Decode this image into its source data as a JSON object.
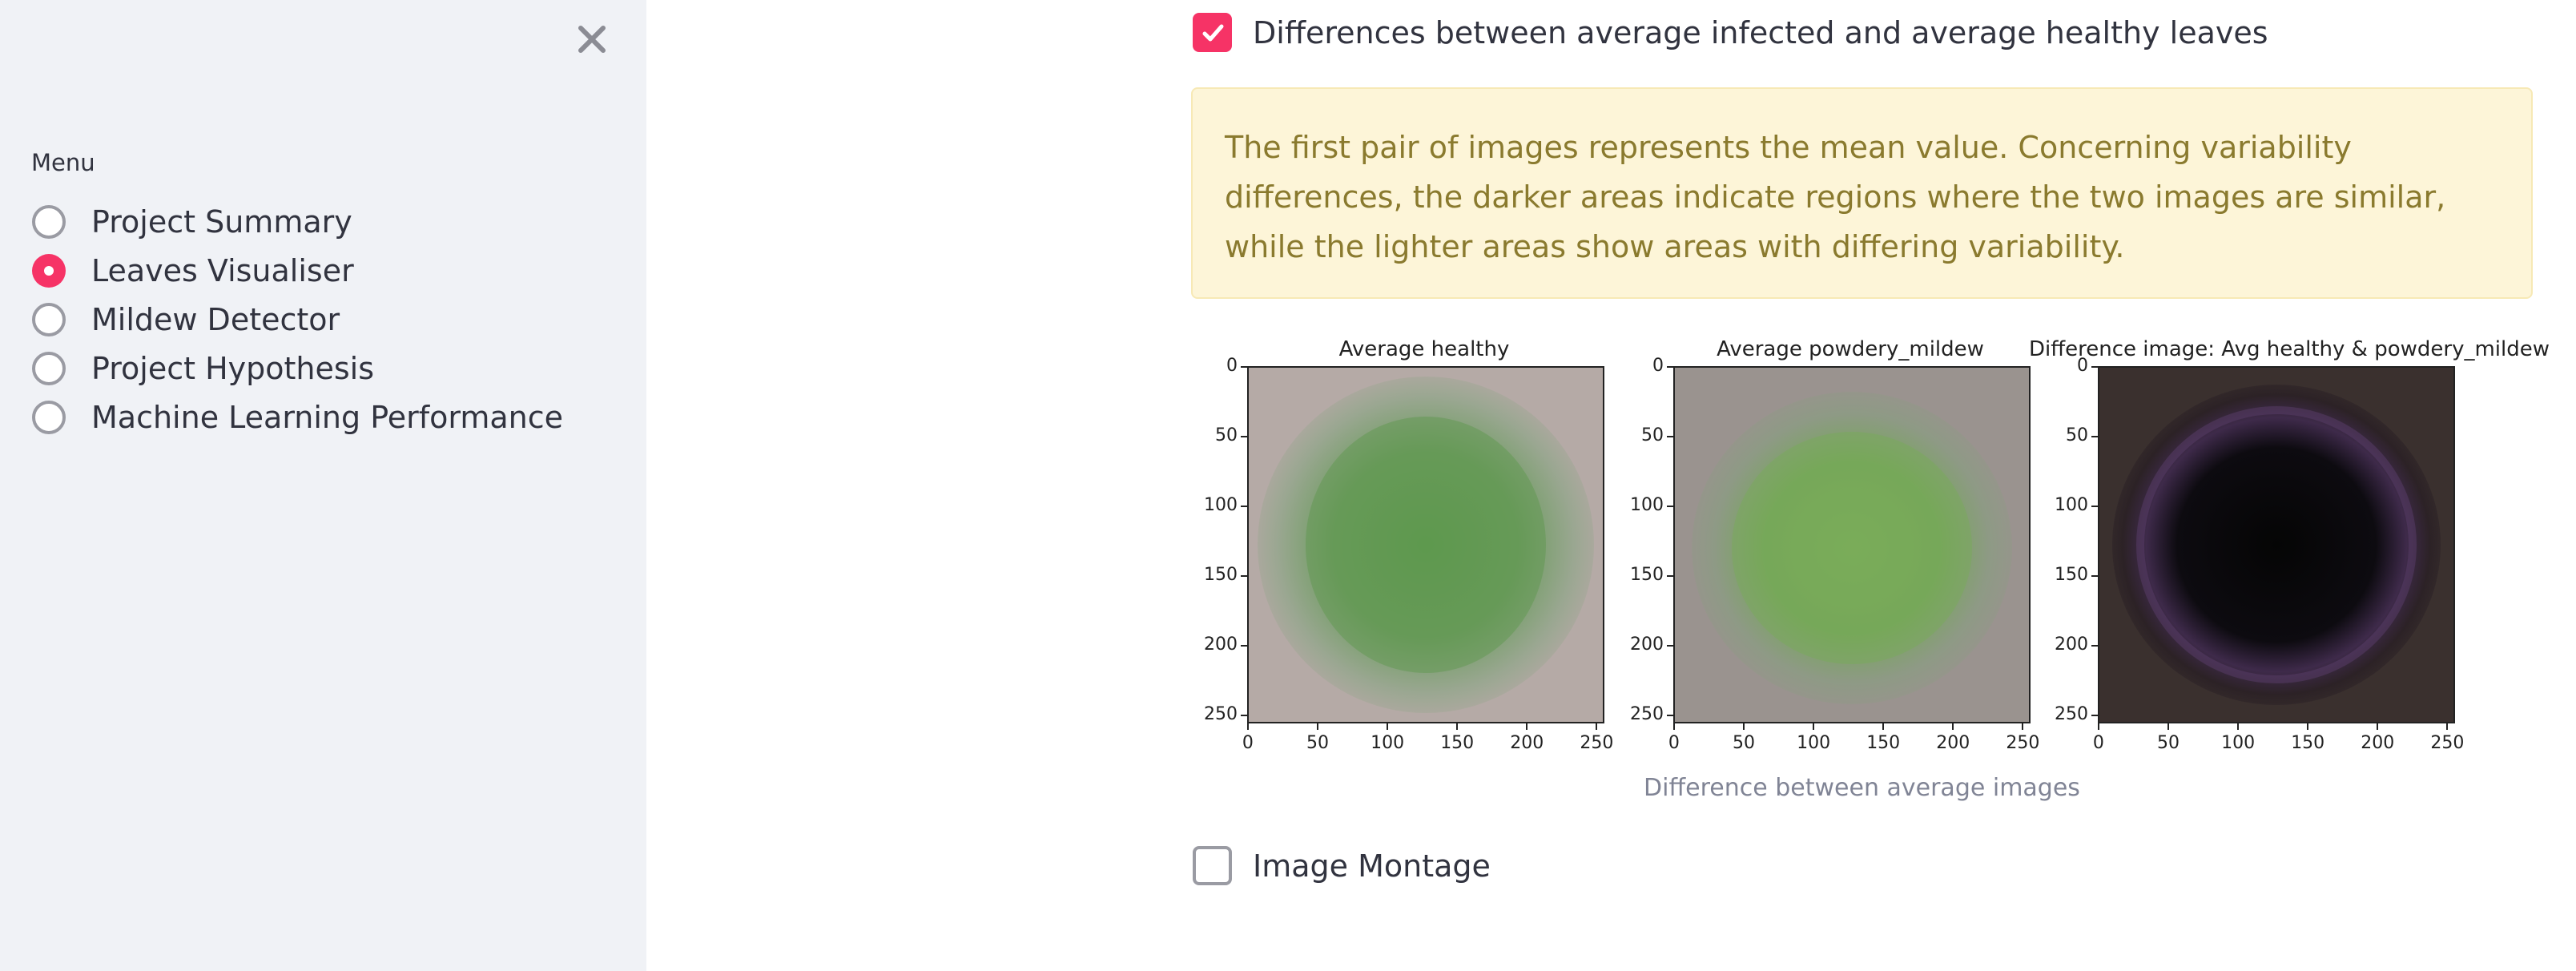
{
  "sidebar": {
    "menu_label": "Menu",
    "close_icon": "close-icon",
    "items": [
      {
        "label": "Project Summary",
        "selected": false
      },
      {
        "label": "Leaves Visualiser",
        "selected": true
      },
      {
        "label": "Mildew Detector",
        "selected": false
      },
      {
        "label": "Project Hypothesis",
        "selected": false
      },
      {
        "label": "Machine Learning Performance",
        "selected": false
      }
    ]
  },
  "main": {
    "difference_checkbox": {
      "label": "Differences between average infected and average healthy leaves",
      "checked": true
    },
    "info_text": "The first pair of images represents the mean value. Concerning variability differences, the darker areas indicate regions where the two images are similar, while the lighter areas show areas with differing variability.",
    "plots": [
      {
        "title": "Average healthy"
      },
      {
        "title": "Average powdery_mildew"
      },
      {
        "title": "Difference image: Avg healthy & powdery_mildew"
      }
    ],
    "y_ticks": [
      "0",
      "50",
      "100",
      "150",
      "200",
      "250"
    ],
    "x_ticks": [
      "0",
      "50",
      "100",
      "150",
      "200",
      "250"
    ],
    "caption": "Difference between average images",
    "montage_checkbox": {
      "label": "Image Montage",
      "checked": false
    }
  },
  "colors": {
    "accent": "#f63366",
    "sidebar_bg": "#f0f2f6",
    "info_bg": "#fdf5d8",
    "info_text": "#8a7a2e"
  }
}
